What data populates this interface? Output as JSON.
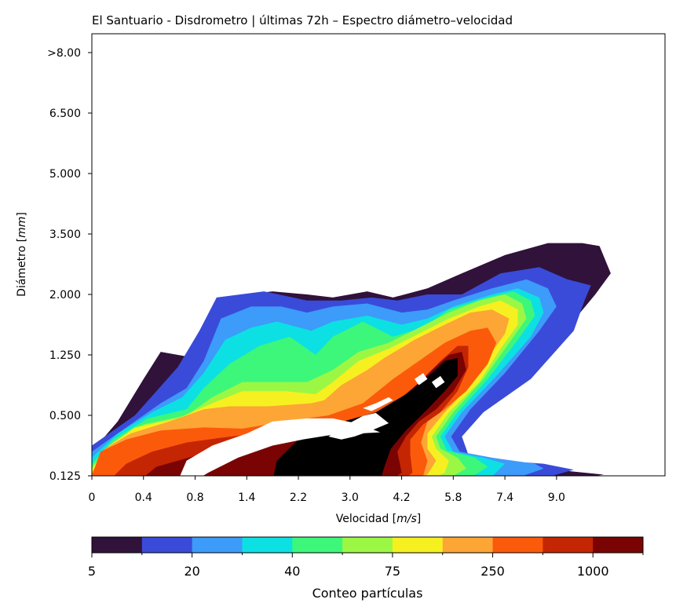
{
  "chart_data": {
    "type": "heatmap",
    "subtype": "filled-contour",
    "title": "El Santuario - Disdrometro | últimas 72h – Espectro diámetro–velocidad",
    "xlabel": "Velocidad [m/s]",
    "ylabel": "Diámetro [mm]",
    "x_ticks": [
      "0",
      "0.4",
      "0.8",
      "1.4",
      "2.2",
      "3.0",
      "4.2",
      "5.8",
      "7.4",
      "9.0"
    ],
    "y_ticks": [
      "0.125",
      "0.500",
      "1.250",
      "2.000",
      "3.500",
      "5.000",
      "6.500",
      ">8.00"
    ],
    "colorbar": {
      "label": "Conteo partículas",
      "tick_labels": [
        "5",
        "20",
        "40",
        "75",
        "250",
        "1000"
      ],
      "colors": [
        "#30123b",
        "#3a4bd9",
        "#3d9bfa",
        "#0de0e2",
        "#3df77a",
        "#9cf745",
        "#f6f020",
        "#fda535",
        "#fb5a0b",
        "#c42503",
        "#7a0403"
      ]
    },
    "contour_levels_index": [
      1,
      2,
      3,
      4,
      5,
      6,
      7,
      8,
      9,
      10,
      11
    ],
    "description_axis": "x = velocity class index (0-12), y = diameter class index (0-7)",
    "levels": [
      [
        [
          0,
          0.4
        ],
        [
          0.6,
          0.9
        ],
        [
          1.2,
          1.6
        ],
        [
          1.6,
          2.05
        ],
        [
          2.4,
          1.95
        ],
        [
          2.8,
          2.75
        ],
        [
          3.6,
          3.0
        ],
        [
          4.2,
          3.05
        ],
        [
          5.0,
          3.0
        ],
        [
          5.6,
          2.95
        ],
        [
          6.4,
          3.05
        ],
        [
          7.0,
          2.95
        ],
        [
          7.8,
          3.1
        ],
        [
          8.6,
          3.35
        ],
        [
          9.6,
          3.65
        ],
        [
          10.6,
          3.85
        ],
        [
          11.4,
          3.85
        ],
        [
          11.8,
          3.8
        ],
        [
          12.06,
          3.35
        ],
        [
          11.7,
          3.0
        ],
        [
          11.0,
          2.4
        ],
        [
          10.0,
          1.6
        ],
        [
          9.0,
          1.1
        ],
        [
          8.45,
          0.65
        ],
        [
          8.55,
          0.35
        ],
        [
          9.2,
          0.22
        ],
        [
          10.5,
          0.12
        ],
        [
          11.9,
          0.02
        ],
        [
          10.9,
          -0.08
        ],
        [
          0,
          -0.08
        ]
      ],
      [
        [
          0,
          0.5
        ],
        [
          1.0,
          1.0
        ],
        [
          1.5,
          1.4
        ],
        [
          2.0,
          1.8
        ],
        [
          2.5,
          2.4
        ],
        [
          2.9,
          2.95
        ],
        [
          4.0,
          3.05
        ],
        [
          5.0,
          2.9
        ],
        [
          5.8,
          2.9
        ],
        [
          6.5,
          2.95
        ],
        [
          7.1,
          2.9
        ],
        [
          7.8,
          3.0
        ],
        [
          8.6,
          3.0
        ],
        [
          9.5,
          3.35
        ],
        [
          10.4,
          3.45
        ],
        [
          11.05,
          3.25
        ],
        [
          11.6,
          3.15
        ],
        [
          11.45,
          2.9
        ],
        [
          11.2,
          2.4
        ],
        [
          10.2,
          1.6
        ],
        [
          9.1,
          1.05
        ],
        [
          8.6,
          0.65
        ],
        [
          8.75,
          0.35
        ],
        [
          9.5,
          0.25
        ],
        [
          10.5,
          0.2
        ],
        [
          11.2,
          0.1
        ],
        [
          10.3,
          -0.08
        ],
        [
          0,
          -0.08
        ]
      ],
      [
        [
          0,
          0.4
        ],
        [
          0.8,
          0.8
        ],
        [
          1.6,
          1.2
        ],
        [
          2.2,
          1.45
        ],
        [
          2.6,
          1.9
        ],
        [
          3.0,
          2.6
        ],
        [
          3.7,
          2.8
        ],
        [
          4.4,
          2.8
        ],
        [
          5.0,
          2.7
        ],
        [
          5.6,
          2.8
        ],
        [
          6.4,
          2.85
        ],
        [
          7.2,
          2.7
        ],
        [
          7.8,
          2.75
        ],
        [
          8.4,
          2.9
        ],
        [
          9.3,
          3.1
        ],
        [
          10.1,
          3.25
        ],
        [
          10.6,
          3.1
        ],
        [
          10.8,
          2.8
        ],
        [
          10.4,
          2.4
        ],
        [
          9.6,
          1.7
        ],
        [
          8.8,
          1.1
        ],
        [
          8.35,
          0.65
        ],
        [
          8.55,
          0.4
        ],
        [
          9.3,
          0.3
        ],
        [
          10.3,
          0.2
        ],
        [
          10.5,
          0.12
        ],
        [
          9.7,
          -0.08
        ],
        [
          0,
          -0.08
        ]
      ],
      [
        [
          0,
          0.3
        ],
        [
          0.6,
          0.7
        ],
        [
          1.4,
          1.05
        ],
        [
          2.1,
          1.3
        ],
        [
          2.6,
          1.7
        ],
        [
          3.1,
          2.25
        ],
        [
          3.7,
          2.45
        ],
        [
          4.3,
          2.55
        ],
        [
          5.1,
          2.4
        ],
        [
          5.6,
          2.55
        ],
        [
          6.4,
          2.65
        ],
        [
          7.2,
          2.5
        ],
        [
          7.8,
          2.6
        ],
        [
          8.4,
          2.8
        ],
        [
          9.3,
          3.0
        ],
        [
          9.9,
          3.1
        ],
        [
          10.4,
          2.95
        ],
        [
          10.5,
          2.7
        ],
        [
          10.2,
          2.3
        ],
        [
          9.4,
          1.65
        ],
        [
          8.6,
          1.05
        ],
        [
          8.2,
          0.65
        ],
        [
          8.4,
          0.4
        ],
        [
          9.1,
          0.3
        ],
        [
          9.6,
          0.2
        ],
        [
          9.2,
          -0.08
        ],
        [
          0,
          -0.08
        ]
      ],
      [
        [
          0,
          0.2
        ],
        [
          0.5,
          0.6
        ],
        [
          1.3,
          0.95
        ],
        [
          2.2,
          1.1
        ],
        [
          2.6,
          1.45
        ],
        [
          3.2,
          1.85
        ],
        [
          3.9,
          2.15
        ],
        [
          4.6,
          2.3
        ],
        [
          5.2,
          2.0
        ],
        [
          5.6,
          2.3
        ],
        [
          6.3,
          2.55
        ],
        [
          7.0,
          2.3
        ],
        [
          7.7,
          2.45
        ],
        [
          8.3,
          2.75
        ],
        [
          9.2,
          2.95
        ],
        [
          9.8,
          3.05
        ],
        [
          10.2,
          2.9
        ],
        [
          10.3,
          2.65
        ],
        [
          9.9,
          2.25
        ],
        [
          9.2,
          1.6
        ],
        [
          8.5,
          1.05
        ],
        [
          8.1,
          0.65
        ],
        [
          8.25,
          0.42
        ],
        [
          8.9,
          0.3
        ],
        [
          9.2,
          0.15
        ],
        [
          8.7,
          -0.08
        ],
        [
          0,
          -0.08
        ]
      ],
      [
        [
          0,
          0.15
        ],
        [
          0.5,
          0.55
        ],
        [
          1.2,
          0.85
        ],
        [
          2.2,
          1.0
        ],
        [
          2.8,
          1.3
        ],
        [
          3.5,
          1.55
        ],
        [
          4.3,
          1.55
        ],
        [
          5.0,
          1.55
        ],
        [
          5.6,
          1.75
        ],
        [
          6.2,
          2.05
        ],
        [
          6.9,
          2.2
        ],
        [
          7.6,
          2.45
        ],
        [
          8.3,
          2.7
        ],
        [
          9.0,
          2.9
        ],
        [
          9.6,
          3.0
        ],
        [
          10.0,
          2.85
        ],
        [
          10.1,
          2.6
        ],
        [
          9.7,
          2.2
        ],
        [
          9.1,
          1.6
        ],
        [
          8.4,
          1.05
        ],
        [
          8.0,
          0.65
        ],
        [
          8.1,
          0.45
        ],
        [
          8.5,
          0.3
        ],
        [
          8.7,
          0.12
        ],
        [
          8.2,
          -0.08
        ],
        [
          0,
          -0.08
        ]
      ],
      [
        [
          0,
          0.1
        ],
        [
          0.4,
          0.5
        ],
        [
          1.0,
          0.8
        ],
        [
          2.0,
          0.95
        ],
        [
          2.8,
          1.2
        ],
        [
          3.5,
          1.4
        ],
        [
          4.5,
          1.4
        ],
        [
          5.2,
          1.35
        ],
        [
          5.6,
          1.55
        ],
        [
          6.2,
          1.9
        ],
        [
          6.9,
          2.1
        ],
        [
          7.6,
          2.35
        ],
        [
          8.3,
          2.6
        ],
        [
          9.0,
          2.8
        ],
        [
          9.5,
          2.9
        ],
        [
          9.9,
          2.75
        ],
        [
          9.9,
          2.5
        ],
        [
          9.5,
          2.1
        ],
        [
          9.0,
          1.55
        ],
        [
          8.3,
          1.05
        ],
        [
          7.9,
          0.65
        ],
        [
          8.0,
          0.45
        ],
        [
          8.3,
          0.25
        ],
        [
          8.2,
          0.05
        ],
        [
          7.8,
          -0.08
        ],
        [
          0,
          -0.08
        ]
      ],
      [
        [
          0,
          0.05
        ],
        [
          0.3,
          0.45
        ],
        [
          0.9,
          0.7
        ],
        [
          1.8,
          0.9
        ],
        [
          2.6,
          1.1
        ],
        [
          3.2,
          1.15
        ],
        [
          4.1,
          1.15
        ],
        [
          5.1,
          1.2
        ],
        [
          5.4,
          1.25
        ],
        [
          5.8,
          1.5
        ],
        [
          6.4,
          1.75
        ],
        [
          6.8,
          1.95
        ],
        [
          7.5,
          2.25
        ],
        [
          8.2,
          2.5
        ],
        [
          8.8,
          2.7
        ],
        [
          9.3,
          2.75
        ],
        [
          9.7,
          2.6
        ],
        [
          9.6,
          2.35
        ],
        [
          9.2,
          1.95
        ],
        [
          8.8,
          1.5
        ],
        [
          8.2,
          1.05
        ],
        [
          7.8,
          0.7
        ],
        [
          7.8,
          0.45
        ],
        [
          8.0,
          0.25
        ],
        [
          7.8,
          0.02
        ],
        [
          7.3,
          -0.08
        ],
        [
          0,
          -0.08
        ]
      ],
      [
        [
          0,
          0.0
        ],
        [
          0.2,
          0.4
        ],
        [
          0.8,
          0.6
        ],
        [
          1.6,
          0.75
        ],
        [
          2.6,
          0.8
        ],
        [
          3.5,
          0.78
        ],
        [
          4.5,
          0.9
        ],
        [
          5.5,
          1.0
        ],
        [
          6.3,
          1.2
        ],
        [
          7.0,
          1.6
        ],
        [
          7.6,
          1.9
        ],
        [
          8.2,
          2.2
        ],
        [
          8.8,
          2.4
        ],
        [
          9.2,
          2.45
        ],
        [
          9.4,
          2.2
        ],
        [
          9.2,
          1.85
        ],
        [
          8.7,
          1.4
        ],
        [
          8.2,
          1.1
        ],
        [
          7.8,
          0.9
        ],
        [
          7.65,
          0.55
        ],
        [
          7.8,
          0.25
        ],
        [
          7.7,
          0.0
        ],
        [
          7.2,
          -0.08
        ],
        [
          0,
          -0.08
        ]
      ],
      [
        [
          0.4,
          -0.08
        ],
        [
          0.8,
          0.2
        ],
        [
          1.4,
          0.4
        ],
        [
          2.2,
          0.55
        ],
        [
          3.0,
          0.63
        ],
        [
          3.6,
          0.68
        ],
        [
          4.4,
          0.72
        ],
        [
          5.2,
          0.78
        ],
        [
          6.0,
          0.85
        ],
        [
          6.6,
          1.0
        ],
        [
          7.2,
          1.3
        ],
        [
          7.7,
          1.6
        ],
        [
          8.1,
          1.9
        ],
        [
          8.5,
          2.15
        ],
        [
          8.75,
          2.15
        ],
        [
          8.75,
          1.8
        ],
        [
          8.5,
          1.4
        ],
        [
          8.1,
          1.05
        ],
        [
          7.7,
          0.85
        ],
        [
          7.4,
          0.6
        ],
        [
          7.4,
          0.35
        ],
        [
          7.45,
          0.05
        ],
        [
          7.2,
          -0.08
        ]
      ],
      [
        [
          1.1,
          -0.08
        ],
        [
          1.5,
          0.15
        ],
        [
          2.5,
          0.35
        ],
        [
          3.4,
          0.5
        ],
        [
          4.3,
          0.65
        ],
        [
          5.0,
          0.75
        ],
        [
          6.0,
          0.88
        ],
        [
          6.8,
          1.1
        ],
        [
          7.4,
          1.4
        ],
        [
          7.9,
          1.75
        ],
        [
          8.3,
          2.0
        ],
        [
          8.6,
          2.05
        ],
        [
          8.7,
          1.75
        ],
        [
          8.4,
          1.4
        ],
        [
          8.0,
          1.1
        ],
        [
          7.6,
          0.9
        ],
        [
          7.3,
          0.65
        ],
        [
          7.1,
          0.4
        ],
        [
          7.2,
          0.05
        ],
        [
          6.9,
          -0.08
        ]
      ],
      [
        [
          4.2,
          -0.08
        ],
        [
          4.3,
          0.25
        ],
        [
          4.8,
          0.6
        ],
        [
          5.6,
          0.85
        ],
        [
          6.6,
          1.05
        ],
        [
          7.3,
          1.35
        ],
        [
          7.9,
          1.7
        ],
        [
          8.2,
          1.9
        ],
        [
          8.5,
          1.95
        ],
        [
          8.5,
          1.65
        ],
        [
          8.2,
          1.4
        ],
        [
          7.8,
          1.1
        ],
        [
          7.3,
          0.75
        ],
        [
          6.95,
          0.45
        ],
        [
          6.8,
          0.15
        ],
        [
          6.7,
          -0.08
        ]
      ]
    ],
    "holes": [
      [
        [
          2.0,
          -0.08
        ],
        [
          2.2,
          0.25
        ],
        [
          2.8,
          0.5
        ],
        [
          3.6,
          0.7
        ],
        [
          4.2,
          0.9
        ],
        [
          5.0,
          0.95
        ],
        [
          5.6,
          0.95
        ],
        [
          6.2,
          0.86
        ],
        [
          6.7,
          0.72
        ],
        [
          6.2,
          0.7
        ],
        [
          5.6,
          0.68
        ],
        [
          4.9,
          0.6
        ],
        [
          4.2,
          0.5
        ],
        [
          3.4,
          0.3
        ],
        [
          2.7,
          0.05
        ],
        [
          2.4,
          -0.08
        ]
      ],
      [
        [
          5.5,
          0.65
        ],
        [
          5.8,
          0.8
        ],
        [
          6.3,
          0.99
        ],
        [
          6.6,
          1.04
        ],
        [
          6.9,
          0.87
        ],
        [
          6.5,
          0.75
        ],
        [
          6.1,
          0.65
        ],
        [
          5.8,
          0.6
        ]
      ],
      [
        [
          6.3,
          1.12
        ],
        [
          6.6,
          1.2
        ],
        [
          6.9,
          1.3
        ],
        [
          7.0,
          1.25
        ],
        [
          6.7,
          1.14
        ],
        [
          6.5,
          1.07
        ]
      ],
      [
        [
          7.6,
          1.5
        ],
        [
          7.8,
          1.6
        ],
        [
          7.7,
          1.7
        ],
        [
          7.5,
          1.6
        ]
      ],
      [
        [
          8.0,
          1.45
        ],
        [
          8.2,
          1.55
        ],
        [
          8.1,
          1.65
        ],
        [
          7.9,
          1.55
        ]
      ]
    ]
  }
}
